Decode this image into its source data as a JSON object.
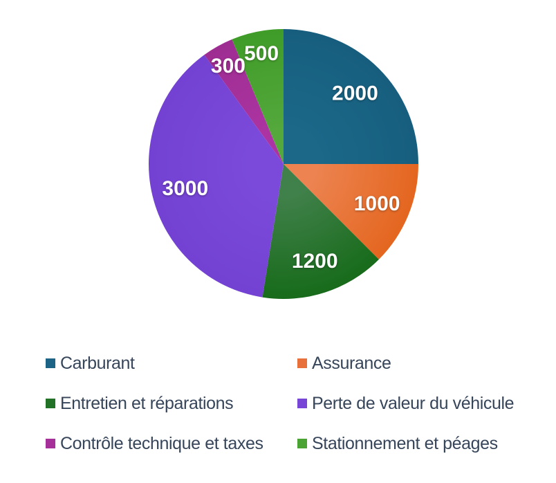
{
  "chart_data": {
    "type": "pie",
    "title": "",
    "categories": [
      "Carburant",
      "Assurance",
      "Entretien et réparations",
      "Perte de valeur du véhicule",
      "Contrôle technique et taxes",
      "Stationnement et péages"
    ],
    "values": [
      2000,
      1000,
      1200,
      3000,
      300,
      500
    ],
    "data_labels": [
      "2000",
      "1000",
      "1200",
      "3000",
      "300",
      "500"
    ],
    "total": 8000,
    "colors": [
      "#1C6385",
      "#E8703A",
      "#217127",
      "#7846D6",
      "#A53099",
      "#4AA332"
    ],
    "gradient_inner": [
      "#1B6889",
      "#EC8350",
      "#40804A",
      "#7B4ADA",
      "#AC34A2",
      "#54A83C"
    ],
    "gradient_outer": [
      "#175E7E",
      "#E4661F",
      "#176B1A",
      "#7342D2",
      "#9E2D92",
      "#3F9C28"
    ],
    "start_angle_deg": 0,
    "direction": "clockwise",
    "data_label_color": "#FFFFFF",
    "legend_position": "bottom",
    "legend_columns": 2,
    "legend_text_color": "#36455A",
    "background": "#FFFFFF"
  }
}
